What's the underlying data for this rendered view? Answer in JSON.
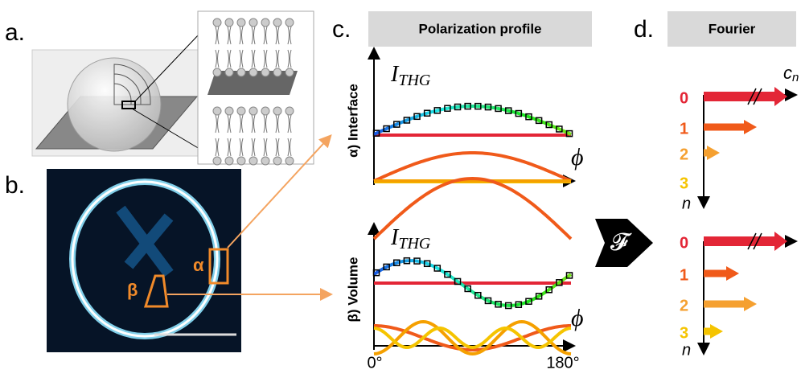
{
  "panels": {
    "a": {
      "label": "a."
    },
    "b": {
      "label": "b.",
      "roi_labels": [
        "α",
        "β"
      ]
    },
    "c": {
      "label": "c.",
      "header": "Polarization profile",
      "rows": [
        {
          "label": "α) Interface",
          "y_label": "I",
          "y_label_sub": "THG",
          "x_label": "ϕ"
        },
        {
          "label": "β) Volume",
          "y_label": "I",
          "y_label_sub": "THG",
          "x_label": "ϕ"
        }
      ],
      "x_ticks": [
        "0°",
        "180°"
      ]
    },
    "transform": "𝓕",
    "d": {
      "label": "d.",
      "header": "Fourier",
      "x_label": "c",
      "x_label_sub": "n",
      "rows": [
        {
          "y_label": "n",
          "orders": [
            "0",
            "1",
            "2",
            "3"
          ]
        },
        {
          "y_label": "n",
          "orders": [
            "0",
            "1",
            "2",
            "3"
          ]
        }
      ]
    }
  }
}
